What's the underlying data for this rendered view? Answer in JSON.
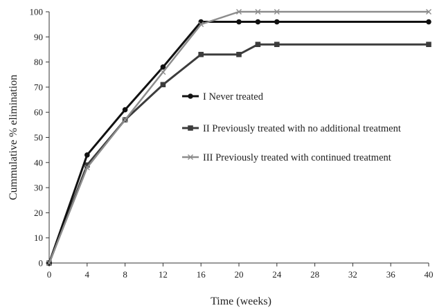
{
  "chart_data": {
    "type": "line",
    "title": "",
    "xlabel": "Time (weeks)",
    "ylabel": "Cummulative % elimination",
    "xlim": [
      0,
      40
    ],
    "ylim": [
      0,
      100
    ],
    "x_ticks": [
      0,
      4,
      8,
      12,
      16,
      20,
      24,
      28,
      32,
      36,
      40
    ],
    "y_ticks": [
      0,
      10,
      20,
      30,
      40,
      50,
      60,
      70,
      80,
      90,
      100
    ],
    "grid": false,
    "legend_position": "right",
    "series": [
      {
        "name": "I  Never treated",
        "marker": "circle",
        "color": "#111111",
        "x": [
          0,
          4,
          8,
          12,
          16,
          20,
          22,
          24,
          40
        ],
        "y": [
          0,
          43,
          61,
          78,
          96,
          96,
          96,
          96,
          96
        ]
      },
      {
        "name": "II  Previously treated with no additional treatment",
        "marker": "square",
        "color": "#3c3c3c",
        "x": [
          0,
          4,
          8,
          12,
          16,
          20,
          22,
          24,
          40
        ],
        "y": [
          0,
          39,
          57,
          71,
          83,
          83,
          87,
          87,
          87
        ]
      },
      {
        "name": "III  Previously treated with continued treatment",
        "marker": "x",
        "color": "#8c8c8c",
        "x": [
          0,
          4,
          8,
          12,
          16,
          20,
          22,
          24,
          40
        ],
        "y": [
          0,
          38,
          57,
          76,
          95,
          100,
          100,
          100,
          100
        ]
      }
    ]
  }
}
